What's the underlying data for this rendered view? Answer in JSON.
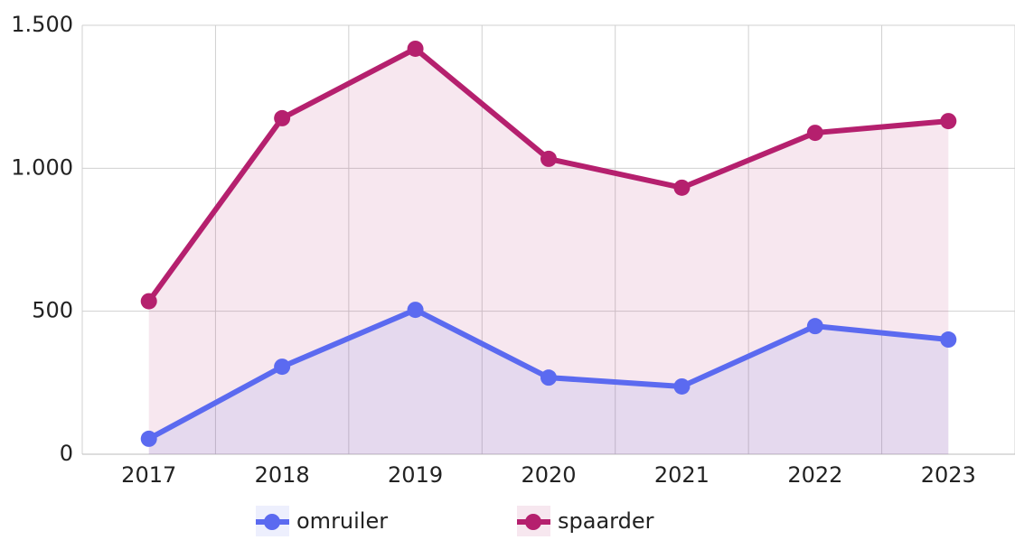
{
  "chart_data": {
    "type": "line",
    "categories": [
      "2017",
      "2018",
      "2019",
      "2020",
      "2021",
      "2022",
      "2023"
    ],
    "series": [
      {
        "name": "omruiler",
        "color": "#5b6af0",
        "values": [
          54,
          306,
          505,
          268,
          237,
          448,
          401
        ]
      },
      {
        "name": "spaarder",
        "color": "#b5206e",
        "values": [
          535,
          1175,
          1418,
          1033,
          932,
          1124,
          1165
        ]
      }
    ],
    "ylim": [
      0,
      1500
    ],
    "yticks": [
      0,
      500,
      {
        "value": 1000,
        "label": "1.000"
      },
      {
        "value": 1500,
        "label": "1.500"
      }
    ],
    "grid": true,
    "area": true,
    "legend": "bottom"
  }
}
